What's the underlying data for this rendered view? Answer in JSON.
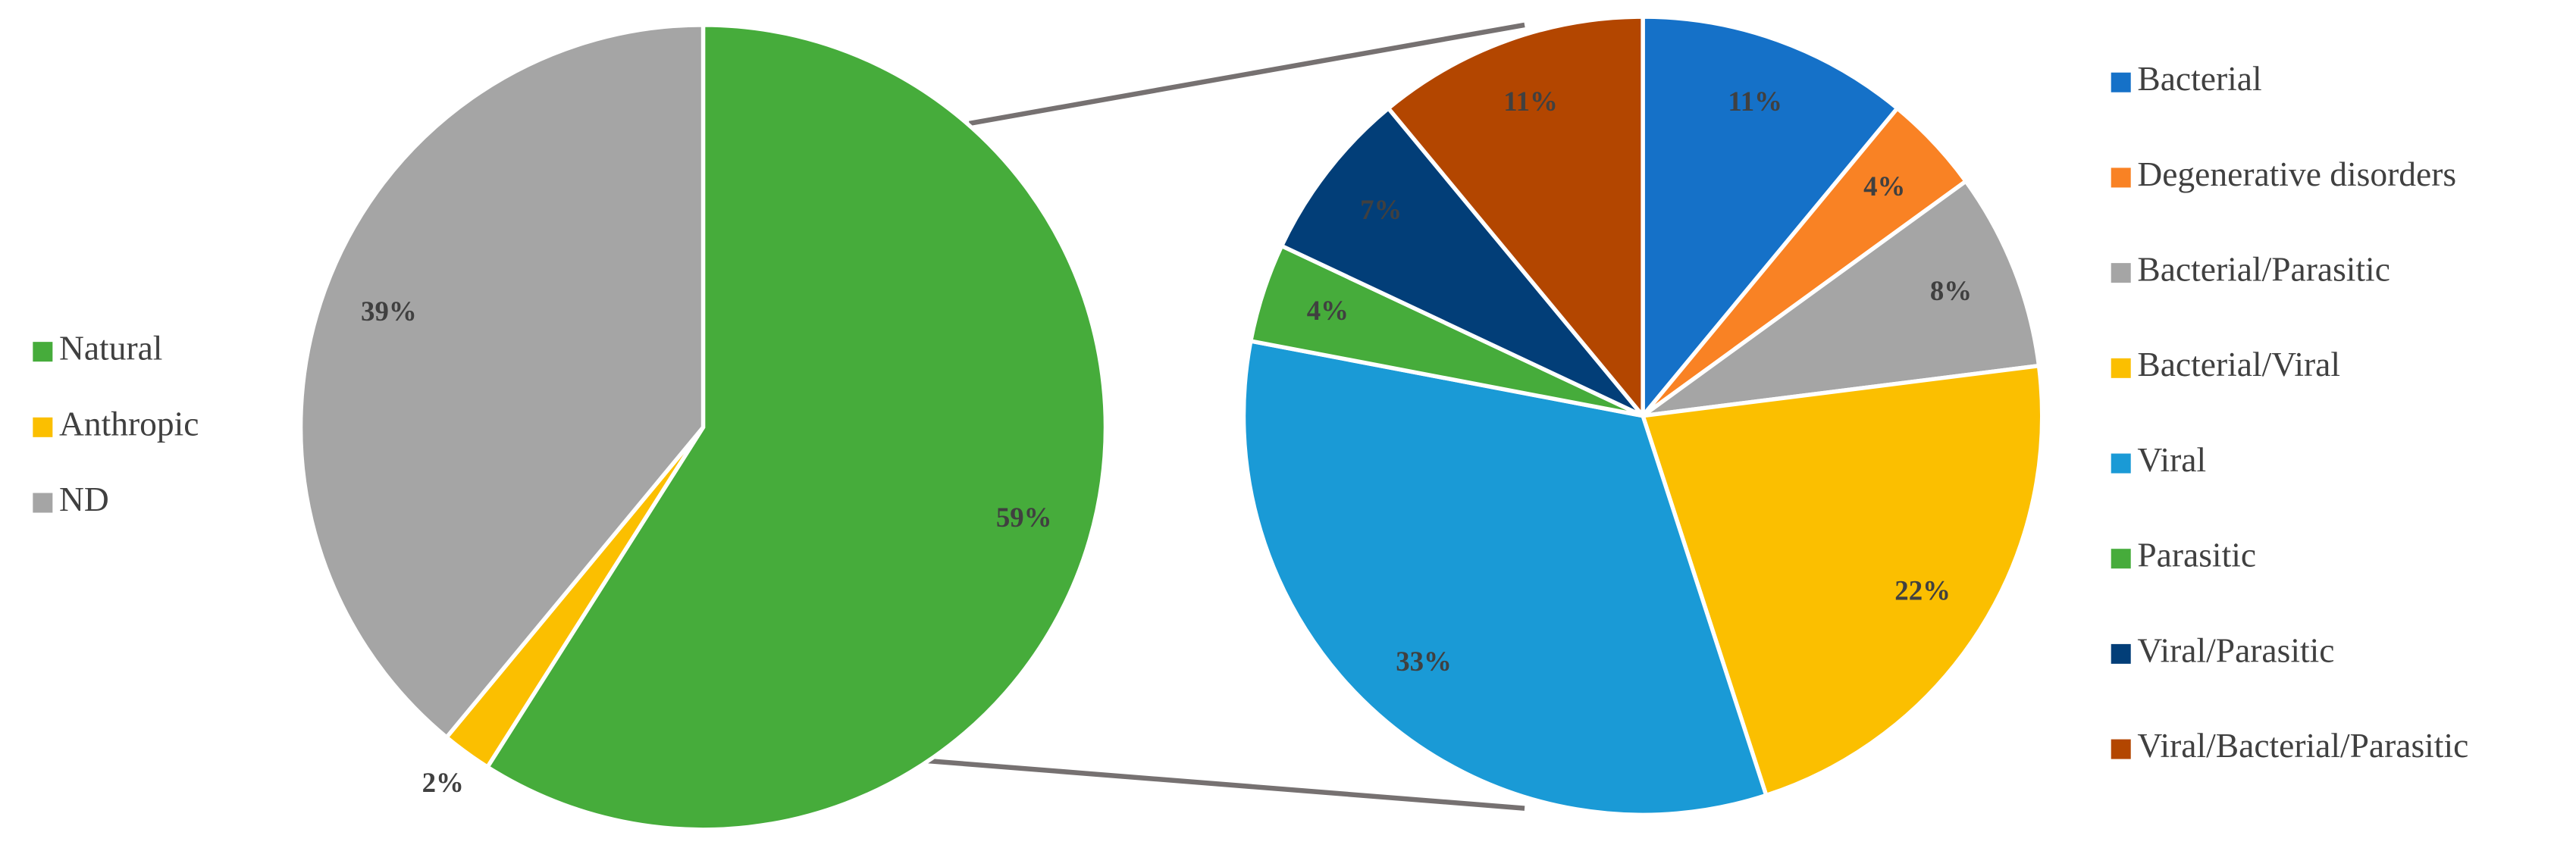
{
  "chart_data": [
    {
      "type": "pie",
      "categories": [
        "Natural",
        "Anthropic",
        "ND"
      ],
      "values": [
        59,
        2,
        39
      ],
      "value_labels": [
        "59%",
        "2%",
        "39%"
      ],
      "colors": [
        "#46ac3b",
        "#fbbf00",
        "#a5a5a5"
      ],
      "legend": "left"
    },
    {
      "type": "pie",
      "categories": [
        "Bacterial",
        "Degenerative disorders",
        "Bacterial/Parasitic",
        "Bacterial/Viral",
        "Viral",
        "Parasitic",
        "Viral/Parasitic",
        "Viral/Bacterial/Parasitic"
      ],
      "values": [
        11,
        4,
        8,
        22,
        33,
        4,
        7,
        11
      ],
      "value_labels": [
        "11%",
        "4%",
        "8%",
        "22%",
        "33%",
        "4%",
        "7%",
        "11%"
      ],
      "colors": [
        "#1571c8",
        "#f98224",
        "#a5a5a5",
        "#fbbf00",
        "#1a9ad6",
        "#46ac3b",
        "#023e78",
        "#b34600"
      ],
      "legend": "right"
    }
  ]
}
